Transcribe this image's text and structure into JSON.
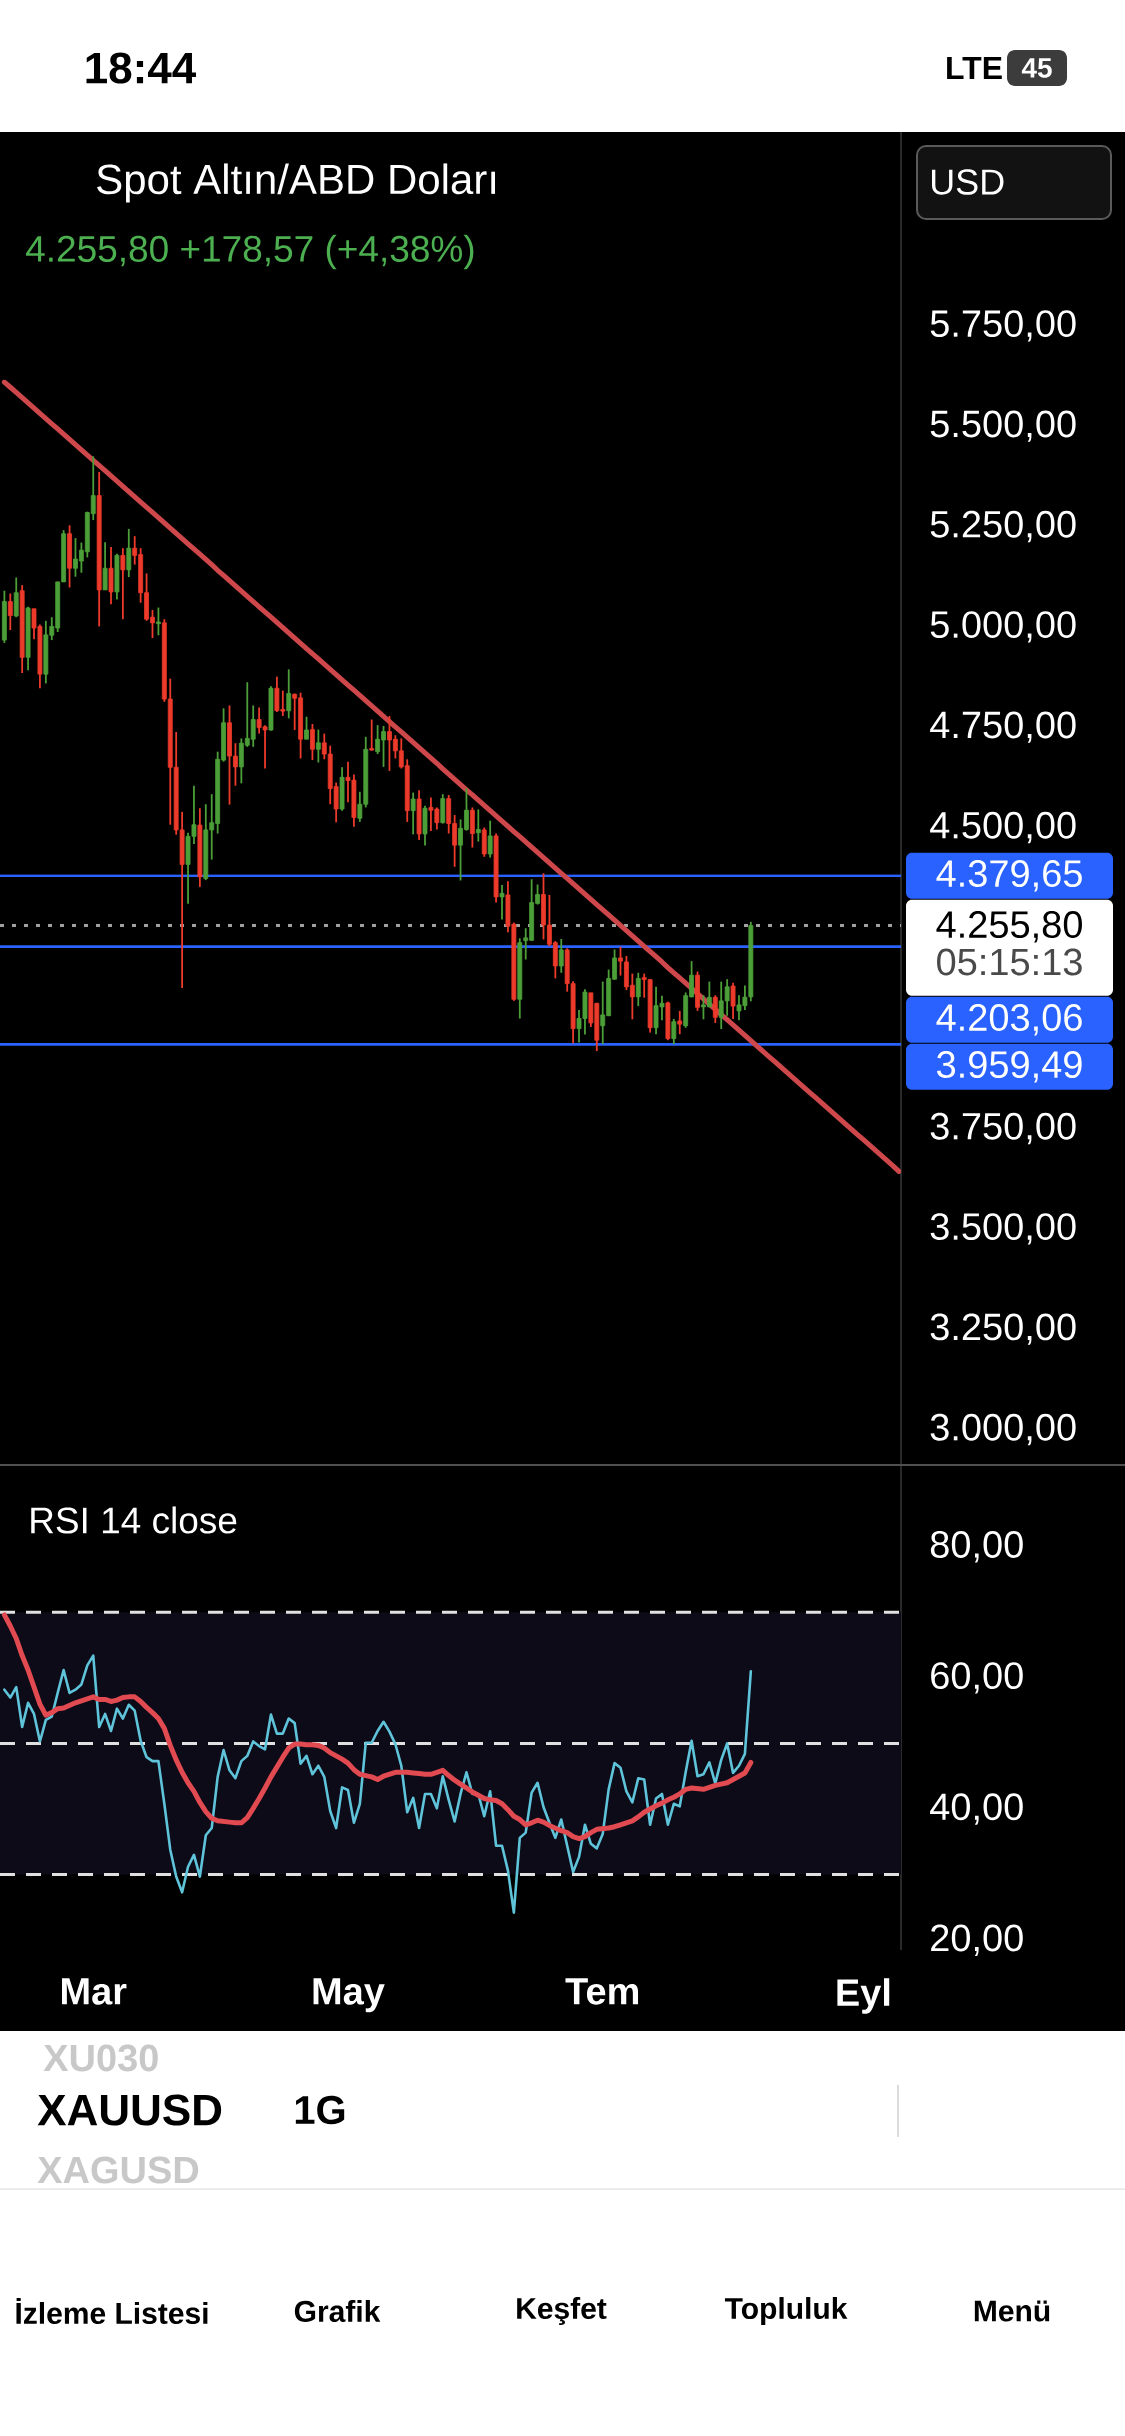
{
  "chart_data": [
    {
      "type": "candlestick",
      "title": "Spot Altın/ABD Doları",
      "subtitle": "4.255,80 +178,57 (+4,38%)",
      "categories": [
        null,
        null,
        null,
        null,
        null,
        null,
        null,
        null,
        null,
        null,
        null,
        null,
        null,
        null,
        null,
        null,
        null,
        null,
        null,
        null,
        null,
        null,
        null,
        null,
        null,
        null,
        null,
        null,
        null,
        null,
        null,
        null,
        null,
        null,
        null,
        null,
        null,
        null,
        null,
        null,
        null,
        null,
        null,
        null,
        null,
        null,
        null,
        null,
        null,
        null,
        null,
        null,
        null,
        null,
        null,
        null,
        null,
        null,
        null,
        null,
        null,
        null,
        null,
        null,
        null,
        null,
        null,
        null,
        null,
        null,
        null,
        null,
        null,
        null,
        null,
        null,
        null,
        null,
        null,
        null,
        null,
        null,
        null,
        null,
        null,
        null,
        null,
        null,
        null,
        null,
        null,
        null,
        null,
        null,
        null,
        null,
        null,
        null,
        null,
        null,
        null,
        null,
        null,
        null,
        null,
        null,
        null,
        null,
        null,
        null,
        null,
        null,
        null,
        null,
        null,
        null,
        null,
        null,
        null,
        null,
        null,
        null,
        null,
        null,
        null,
        null,
        null,
        null,
        null,
        null,
        null,
        null,
        null,
        null,
        null,
        null,
        null,
        null,
        null,
        null,
        null,
        null,
        null,
        null,
        null,
        null,
        null,
        null,
        null,
        null,
        null,
        null
      ],
      "ohlc": [
        [
          4967,
          5090,
          4960,
          5063
        ],
        [
          5063,
          5083,
          4992,
          5028
        ],
        [
          5027,
          5123,
          5024,
          5085
        ],
        [
          5090,
          5104,
          4885,
          4924
        ],
        [
          4924,
          5050,
          4892,
          5047
        ],
        [
          5045,
          5045,
          4969,
          4997
        ],
        [
          5001,
          5006,
          4847,
          4882
        ],
        [
          4882,
          5015,
          4859,
          4980
        ],
        [
          4979,
          5024,
          4967,
          5001
        ],
        [
          4997,
          5112,
          4987,
          5112
        ],
        [
          5112,
          5241,
          5112,
          5232
        ],
        [
          5232,
          5253,
          5098,
          5146
        ],
        [
          5146,
          5221,
          5125,
          5169
        ],
        [
          5164,
          5210,
          5135,
          5191
        ],
        [
          5187,
          5287,
          5173,
          5285
        ],
        [
          5282,
          5425,
          5266,
          5327
        ],
        [
          5327,
          5386,
          5001,
          5092
        ],
        [
          5092,
          5211,
          5092,
          5146
        ],
        [
          5146,
          5199,
          5056,
          5087
        ],
        [
          5087,
          5182,
          5068,
          5178
        ],
        [
          5178,
          5196,
          5019,
          5142
        ],
        [
          5142,
          5244,
          5124,
          5196
        ],
        [
          5196,
          5226,
          5155,
          5178
        ],
        [
          5180,
          5196,
          5060,
          5085
        ],
        [
          5085,
          5133,
          5015,
          5019
        ],
        [
          5024,
          5042,
          4972,
          5010
        ],
        [
          5008,
          5048,
          4979,
          5012
        ],
        [
          5010,
          5019,
          4813,
          4820
        ],
        [
          4820,
          4871,
          4507,
          4650
        ],
        [
          4650,
          4738,
          4482,
          4494
        ],
        [
          4494,
          4539,
          4100,
          4408
        ],
        [
          4408,
          4487,
          4310,
          4478
        ],
        [
          4478,
          4604,
          4459,
          4507
        ],
        [
          4506,
          4548,
          4352,
          4377
        ],
        [
          4373,
          4558,
          4369,
          4494
        ],
        [
          4494,
          4583,
          4420,
          4512
        ],
        [
          4510,
          4689,
          4485,
          4670
        ],
        [
          4668,
          4797,
          4664,
          4761
        ],
        [
          4761,
          4804,
          4557,
          4678
        ],
        [
          4678,
          4710,
          4604,
          4651
        ],
        [
          4651,
          4722,
          4610,
          4710
        ],
        [
          4705,
          4862,
          4701,
          4722
        ],
        [
          4720,
          4804,
          4701,
          4769
        ],
        [
          4769,
          4799,
          4734,
          4749
        ],
        [
          4751,
          4755,
          4647,
          4743
        ],
        [
          4743,
          4852,
          4741,
          4847
        ],
        [
          4847,
          4876,
          4788,
          4791
        ],
        [
          4794,
          4841,
          4778,
          4790
        ],
        [
          4791,
          4894,
          4772,
          4834
        ],
        [
          4832,
          4834,
          4743,
          4822
        ],
        [
          4823,
          4836,
          4672,
          4720
        ],
        [
          4720,
          4776,
          4720,
          4743
        ],
        [
          4744,
          4758,
          4668,
          4695
        ],
        [
          4695,
          4744,
          4662,
          4711
        ],
        [
          4711,
          4734,
          4670,
          4683
        ],
        [
          4683,
          4704,
          4558,
          4597
        ],
        [
          4602,
          4612,
          4513,
          4546
        ],
        [
          4546,
          4650,
          4542,
          4625
        ],
        [
          4625,
          4664,
          4563,
          4617
        ],
        [
          4618,
          4632,
          4502,
          4525
        ],
        [
          4523,
          4589,
          4514,
          4558
        ],
        [
          4558,
          4726,
          4550,
          4695
        ],
        [
          4697,
          4769,
          4691,
          4693
        ],
        [
          4689,
          4755,
          4683,
          4720
        ],
        [
          4718,
          4753,
          4651,
          4739
        ],
        [
          4739,
          4778,
          4641,
          4718
        ],
        [
          4720,
          4730,
          4672,
          4691
        ],
        [
          4691,
          4722,
          4647,
          4651
        ],
        [
          4654,
          4670,
          4514,
          4542
        ],
        [
          4542,
          4587,
          4483,
          4571
        ],
        [
          4571,
          4593,
          4469,
          4484
        ],
        [
          4484,
          4554,
          4455,
          4548
        ],
        [
          4550,
          4575,
          4491,
          4543
        ],
        [
          4546,
          4550,
          4495,
          4512
        ],
        [
          4512,
          4583,
          4510,
          4572
        ],
        [
          4572,
          4581,
          4485,
          4510
        ],
        [
          4510,
          4531,
          4402,
          4456
        ],
        [
          4456,
          4520,
          4368,
          4498
        ],
        [
          4495,
          4598,
          4492,
          4543
        ],
        [
          4543,
          4550,
          4450,
          4485
        ],
        [
          4487,
          4545,
          4465,
          4495
        ],
        [
          4494,
          4500,
          4427,
          4434
        ],
        [
          4434,
          4517,
          4425,
          4479
        ],
        [
          4479,
          4485,
          4313,
          4327
        ],
        [
          4327,
          4357,
          4271,
          4336
        ],
        [
          4332,
          4366,
          4239,
          4254
        ],
        [
          4259,
          4263,
          4068,
          4072
        ],
        [
          4072,
          4224,
          4024,
          4213
        ],
        [
          4218,
          4249,
          4171,
          4225
        ],
        [
          4219,
          4371,
          4218,
          4313
        ],
        [
          4311,
          4358,
          4308,
          4333
        ],
        [
          4333,
          4386,
          4221,
          4257
        ],
        [
          4257,
          4332,
          4204,
          4209
        ],
        [
          4213,
          4217,
          4124,
          4155
        ],
        [
          4155,
          4222,
          4138,
          4195
        ],
        [
          4195,
          4199,
          4091,
          4111
        ],
        [
          4111,
          4117,
          3962,
          3999
        ],
        [
          3999,
          4045,
          3964,
          4024
        ],
        [
          4024,
          4097,
          3984,
          4090
        ],
        [
          4088,
          4088,
          4003,
          4013
        ],
        [
          4062,
          4063,
          3943,
          3970
        ],
        [
          4006,
          4116,
          3960,
          4033
        ],
        [
          4031,
          4146,
          4030,
          4124
        ],
        [
          4122,
          4196,
          4121,
          4175
        ],
        [
          4175,
          4203,
          4131,
          4167
        ],
        [
          4165,
          4180,
          4095,
          4103
        ],
        [
          4107,
          4136,
          4022,
          4078
        ],
        [
          4078,
          4138,
          4055,
          4124
        ],
        [
          4126,
          4136,
          4076,
          4121
        ],
        [
          4121,
          4122,
          3989,
          4001
        ],
        [
          4001,
          4103,
          3985,
          4056
        ],
        [
          4053,
          4081,
          4020,
          4062
        ],
        [
          4063,
          4066,
          3970,
          3974
        ],
        [
          3974,
          4023,
          3960,
          4016
        ],
        [
          4018,
          4043,
          3985,
          4010
        ],
        [
          4006,
          4089,
          4001,
          4081
        ],
        [
          4078,
          4167,
          4077,
          4132
        ],
        [
          4132,
          4141,
          4043,
          4052
        ],
        [
          4053,
          4082,
          4022,
          4058
        ],
        [
          4053,
          4116,
          4053,
          4077
        ],
        [
          4077,
          4082,
          4013,
          4027
        ],
        [
          4027,
          4116,
          3998,
          4068
        ],
        [
          4068,
          4122,
          4031,
          4103
        ],
        [
          4105,
          4113,
          4023,
          4055
        ],
        [
          4043,
          4082,
          4020,
          4058
        ],
        [
          4056,
          4106,
          4045,
          4077.2
        ],
        [
          4078,
          4265,
          4067,
          4255.8
        ],
        null,
        null,
        null,
        null,
        null,
        null,
        null,
        null,
        null,
        null,
        null,
        null,
        null,
        null,
        null,
        null,
        null,
        null,
        null,
        null,
        null,
        null,
        null,
        null,
        null
      ],
      "colors": [
        "#4c9f38",
        "#ec3a2b",
        "#4c9f38",
        "#ec3a2b",
        "#4c9f38",
        "#ec3a2b",
        "#ec3a2b",
        "#4c9f38",
        "#4c9f38",
        "#4c9f38",
        "#4c9f38",
        "#ec3a2b",
        "#4c9f38",
        "#4c9f38",
        "#4c9f38",
        "#4c9f38",
        "#ec3a2b",
        "#4c9f38",
        "#ec3a2b",
        "#4c9f38",
        "#ec3a2b",
        "#4c9f38",
        "#ec3a2b",
        "#ec3a2b",
        "#ec3a2b",
        "#ec3a2b",
        "#4c9f38",
        "#ec3a2b",
        "#ec3a2b",
        "#ec3a2b",
        "#ec3a2b",
        "#4c9f38",
        "#4c9f38",
        "#ec3a2b",
        "#4c9f38",
        "#4c9f38",
        "#4c9f38",
        "#4c9f38",
        "#ec3a2b",
        "#ec3a2b",
        "#4c9f38",
        "#4c9f38",
        "#4c9f38",
        "#ec3a2b",
        "#ec3a2b",
        "#4c9f38",
        "#ec3a2b",
        "#ec3a2b",
        "#4c9f38",
        "#ec3a2b",
        "#ec3a2b",
        "#4c9f38",
        "#ec3a2b",
        "#4c9f38",
        "#ec3a2b",
        "#ec3a2b",
        "#ec3a2b",
        "#4c9f38",
        "#ec3a2b",
        "#ec3a2b",
        "#4c9f38",
        "#4c9f38",
        "#ec3a2b",
        "#4c9f38",
        "#4c9f38",
        "#ec3a2b",
        "#ec3a2b",
        "#ec3a2b",
        "#ec3a2b",
        "#4c9f38",
        "#ec3a2b",
        "#4c9f38",
        "#ec3a2b",
        "#ec3a2b",
        "#4c9f38",
        "#ec3a2b",
        "#ec3a2b",
        "#4c9f38",
        "#4c9f38",
        "#ec3a2b",
        "#4c9f38",
        "#ec3a2b",
        "#4c9f38",
        "#ec3a2b",
        "#4c9f38",
        "#ec3a2b",
        "#ec3a2b",
        "#4c9f38",
        "#4c9f38",
        "#4c9f38",
        "#4c9f38",
        "#ec3a2b",
        "#ec3a2b",
        "#ec3a2b",
        "#4c9f38",
        "#ec3a2b",
        "#ec3a2b",
        "#4c9f38",
        "#4c9f38",
        "#ec3a2b",
        "#ec3a2b",
        "#4c9f38",
        "#4c9f38",
        "#4c9f38",
        "#ec3a2b",
        "#ec3a2b",
        "#ec3a2b",
        "#4c9f38",
        "#ec3a2b",
        "#ec3a2b",
        "#4c9f38",
        "#4c9f38",
        "#ec3a2b",
        "#4c9f38",
        "#ec3a2b",
        "#4c9f38",
        "#4c9f38",
        "#ec3a2b",
        "#4c9f38",
        "#4c9f38",
        "#ec3a2b",
        "#4c9f38",
        "#4c9f38",
        "#ec3a2b",
        "#4c9f38",
        "#4c9f38",
        "#4c9f38",
        null,
        null,
        null,
        null,
        null,
        null,
        null,
        null,
        null,
        null,
        null,
        null,
        null,
        null,
        null,
        null,
        null,
        null,
        null,
        null,
        null,
        null,
        null,
        null,
        null
      ],
      "series": [
        {
          "type": "line",
          "color": "#cd474b",
          "values": [
            5610,
            5597,
            5584,
            5571,
            5558,
            5545,
            5532,
            5519,
            5506,
            5493,
            5480,
            5467,
            5454,
            5441,
            5428,
            5415,
            5402,
            5389,
            5376,
            5363,
            5350,
            5337,
            5324,
            5311,
            5298,
            5285,
            5272,
            5259,
            5246,
            5233,
            5220,
            5207,
            5194,
            5181,
            5168,
            5155,
            5141,
            5128,
            5115,
            5102,
            5089,
            5076,
            5063,
            5050,
            5037,
            5024,
            5011,
            4998,
            4985,
            4972,
            4959,
            4946,
            4933,
            4920,
            4907,
            4894,
            4881,
            4868,
            4855,
            4842,
            4829,
            4816,
            4803,
            4790,
            4777,
            4764,
            4751,
            4738,
            4725,
            4712,
            4699,
            4686,
            4673,
            4660,
            4646,
            4633,
            4620,
            4607,
            4594,
            4581,
            4568,
            4555,
            4542,
            4529,
            4516,
            4503,
            4490,
            4477,
            4464,
            4451,
            4438,
            4425,
            4412,
            4399,
            4386,
            4373,
            4360,
            4347,
            4334,
            4321,
            4308,
            4295,
            4282,
            4269,
            4256,
            4243,
            4230,
            4217,
            4204,
            4191,
            4178,
            4165,
            4151,
            4138,
            4125,
            4112,
            4099,
            4086,
            4073,
            4060,
            4047,
            4034,
            4021,
            4008,
            3995,
            3982,
            3969,
            3956,
            3943,
            3930,
            3917,
            3904,
            3891,
            3878,
            3865,
            3852,
            3839,
            3826,
            3813,
            3800,
            3787,
            3774,
            3761,
            3748,
            3735,
            3722,
            3709,
            3696,
            3683,
            3670,
            3657,
            3643
          ]
        }
      ],
      "ylim": [
        2914,
        6233
      ],
      "yticks": [
        {
          "value": 5750,
          "label": "5.750,00"
        },
        {
          "value": 5500,
          "label": "5.500,00"
        },
        {
          "value": 5250,
          "label": "5.250,00"
        },
        {
          "value": 5000,
          "label": "5.000,00"
        },
        {
          "value": 4750,
          "label": "4.750,00"
        },
        {
          "value": 4500,
          "label": "4.500,00"
        },
        {
          "value": 3750,
          "label": "3.750,00"
        },
        {
          "value": 3500,
          "label": "3.500,00"
        },
        {
          "value": 3250,
          "label": "3.250,00"
        },
        {
          "value": 3000,
          "label": "3.000,00"
        }
      ],
      "ref_lines": [
        {
          "axis": "y",
          "value": 4379.65,
          "label": "4.379,65",
          "color": "#2962ff"
        },
        {
          "axis": "y",
          "value": 4255.8,
          "label": "4.255,80",
          "color": "#a0a0a0",
          "line_style": "dotted"
        },
        {
          "axis": "y",
          "value": 4203.06,
          "label": "4.203,06",
          "color": "#2962ff"
        },
        {
          "axis": "y",
          "value": 3959.49,
          "label": "3.959,49",
          "color": "#2962ff"
        }
      ],
      "annotations": [
        "18:44",
        "LTE",
        "45",
        "USD",
        "05:15:13",
        "XU030",
        "XAUUSD",
        "XAGUSD",
        "1G",
        "İzleme Listesi",
        "Grafik",
        "Keşfet",
        "Topluluk",
        "Menü"
      ]
    },
    {
      "type": "line",
      "title": "RSI 14 close",
      "categories": [
        null,
        null,
        null,
        null,
        null,
        null,
        null,
        null,
        null,
        null,
        null,
        null,
        null,
        null,
        null,
        "Mar",
        null,
        null,
        null,
        null,
        null,
        null,
        null,
        null,
        null,
        null,
        null,
        null,
        null,
        null,
        null,
        null,
        null,
        null,
        null,
        null,
        null,
        null,
        null,
        null,
        null,
        null,
        null,
        null,
        null,
        null,
        null,
        null,
        null,
        null,
        null,
        null,
        null,
        null,
        null,
        null,
        null,
        null,
        "May",
        null,
        null,
        null,
        null,
        null,
        null,
        null,
        null,
        null,
        null,
        null,
        null,
        null,
        null,
        null,
        null,
        null,
        null,
        null,
        null,
        null,
        null,
        null,
        null,
        null,
        null,
        null,
        null,
        null,
        null,
        null,
        null,
        null,
        null,
        null,
        null,
        null,
        null,
        null,
        null,
        null,
        null,
        "Tem",
        null,
        null,
        null,
        null,
        null,
        null,
        null,
        null,
        null,
        null,
        null,
        null,
        null,
        null,
        null,
        null,
        null,
        null,
        null,
        null,
        null,
        null,
        null,
        null,
        null,
        null,
        null,
        null,
        null,
        null,
        null,
        null,
        null,
        null,
        null,
        null,
        null,
        null,
        null,
        null,
        null,
        null,
        null,
        "Eyl",
        null,
        null,
        null,
        null,
        null,
        null
      ],
      "series": [
        {
          "color": "#5fc3da",
          "values": [
            58.2,
            57.0,
            58.6,
            52.5,
            56.2,
            54.5,
            50.3,
            53.6,
            54.1,
            57.7,
            61.2,
            57.7,
            58.2,
            59.0,
            61.9,
            63.4,
            52.5,
            54.5,
            51.9,
            55.3,
            53.8,
            55.9,
            55.0,
            50.4,
            47.9,
            47.3,
            47.3,
            40.8,
            33.8,
            29.7,
            27.3,
            31.2,
            33.0,
            29.7,
            36.0,
            37.1,
            44.9,
            49.0,
            45.9,
            44.7,
            47.3,
            48.1,
            50.3,
            49.6,
            49.1,
            54.4,
            51.5,
            51.5,
            53.8,
            53.1,
            46.9,
            48.1,
            45.3,
            46.6,
            44.9,
            39.7,
            37.1,
            43.3,
            42.9,
            37.9,
            40.8,
            50.1,
            50.1,
            51.9,
            53.3,
            51.8,
            49.9,
            46.6,
            39.5,
            41.7,
            37.1,
            42.3,
            42.3,
            40.1,
            45.0,
            41.4,
            38.1,
            42.3,
            45.6,
            42.3,
            42.3,
            38.9,
            42.7,
            34.4,
            34.4,
            30.6,
            24.2,
            35.6,
            36.4,
            42.5,
            44.0,
            40.3,
            37.9,
            35.6,
            38.4,
            34.4,
            30.4,
            32.7,
            37.6,
            34.7,
            34.0,
            36.2,
            43.0,
            47.0,
            46.3,
            42.7,
            41.0,
            44.7,
            44.5,
            37.6,
            41.6,
            42.3,
            37.6,
            40.8,
            40.4,
            45.6,
            50.4,
            45.0,
            45.3,
            47.1,
            43.9,
            47.5,
            50.0,
            45.5,
            46.6,
            48.4,
            61.0,
            null,
            null,
            null,
            null,
            null,
            null,
            null,
            null,
            null,
            null,
            null,
            null,
            null,
            null,
            null,
            null,
            null,
            null,
            null,
            null,
            null,
            null,
            null,
            null,
            null
          ]
        },
        {
          "color": "#e04a50",
          "values": [
            69.6,
            67.9,
            66.0,
            63.4,
            61.2,
            58.6,
            56.0,
            54.3,
            54.7,
            55.3,
            55.4,
            55.8,
            56.2,
            56.5,
            56.8,
            57.1,
            56.7,
            56.7,
            56.4,
            56.6,
            57.0,
            57.1,
            57.1,
            56.4,
            55.5,
            54.7,
            53.8,
            52.3,
            49.7,
            47.5,
            45.6,
            44.0,
            42.7,
            41.0,
            39.6,
            38.6,
            38.2,
            38.1,
            38.0,
            37.9,
            37.9,
            38.7,
            40.1,
            41.6,
            43.2,
            44.9,
            46.4,
            47.9,
            49.3,
            49.9,
            49.9,
            49.8,
            49.8,
            49.7,
            49.3,
            48.6,
            48.1,
            47.6,
            47.0,
            46.0,
            45.3,
            45.1,
            44.9,
            44.5,
            45.0,
            45.3,
            45.6,
            45.6,
            45.6,
            45.5,
            45.4,
            45.3,
            45.3,
            45.6,
            45.9,
            45.1,
            44.4,
            43.8,
            43.2,
            42.6,
            42.1,
            41.6,
            41.4,
            41.3,
            40.8,
            39.9,
            38.9,
            38.4,
            37.6,
            37.9,
            38.3,
            38.0,
            37.5,
            37.1,
            36.7,
            36.4,
            35.8,
            35.5,
            35.8,
            36.4,
            36.9,
            37.0,
            37.1,
            37.3,
            37.6,
            37.9,
            38.2,
            38.8,
            39.5,
            40.0,
            40.5,
            40.9,
            41.4,
            41.8,
            42.3,
            43.0,
            43.2,
            43.1,
            43.0,
            43.3,
            43.6,
            43.8,
            44.0,
            44.5,
            45.0,
            45.5,
            47.1,
            null,
            null,
            null,
            null,
            null,
            null,
            null,
            null,
            null,
            null,
            null,
            null,
            null,
            null,
            null,
            null,
            null,
            null,
            null,
            null,
            null,
            null,
            null,
            null,
            null
          ]
        }
      ],
      "ylim": [
        18.5,
        92.3
      ],
      "yticks": [
        {
          "value": 80,
          "label": "80,00"
        },
        {
          "value": 60,
          "label": "60,00"
        },
        {
          "value": 40,
          "label": "40,00"
        },
        {
          "value": 20,
          "label": "20,00"
        }
      ],
      "ref_lines": [
        {
          "axis": "y",
          "value": 70,
          "color": "#e0e0e0",
          "line_style": "dashed"
        },
        {
          "axis": "y",
          "value": 50,
          "color": "#e0e0e0",
          "line_style": "dashed"
        },
        {
          "axis": "y",
          "value": 30,
          "color": "#e0e0e0",
          "line_style": "dashed"
        }
      ],
      "bands": [
        {
          "axis": "y",
          "from": 30,
          "to": 70,
          "color": "#0c0b17"
        }
      ]
    }
  ]
}
